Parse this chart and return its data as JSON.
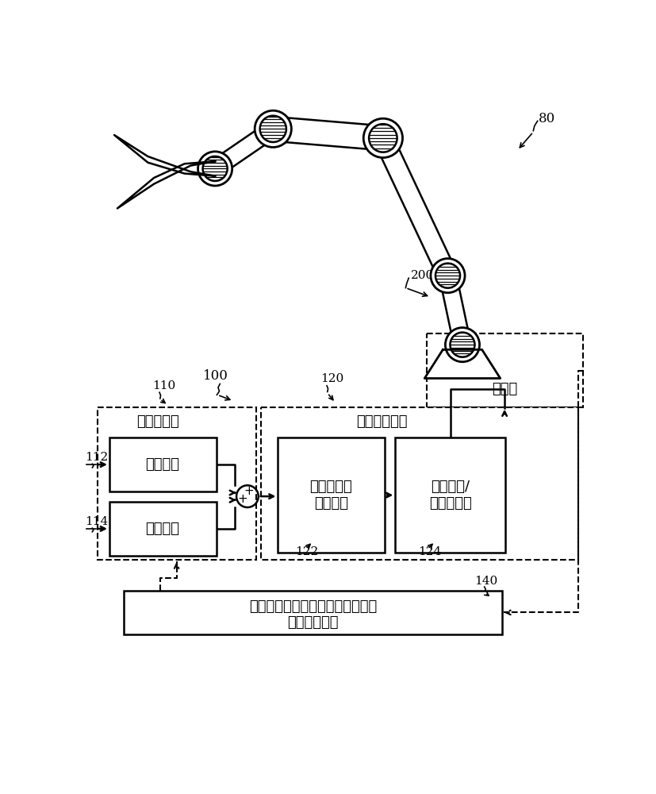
{
  "bg_color": "#ffffff",
  "label_80": "80",
  "label_200": "200",
  "label_100": "100",
  "label_110": "110",
  "label_120": "120",
  "label_112": "112",
  "label_114": "114",
  "label_122": "122",
  "label_124": "124",
  "label_140": "140",
  "text_robot": "机器人",
  "text_param_proc": "参数处理器",
  "text_adaptive": "自适应控制器",
  "text_pred_err": "预测误差",
  "text_track_err": "跟踪误差",
  "text_comp_learn": "复合学习参\n数更新律",
  "text_drive_torque": "驱动力矩/\n力矩控制器",
  "text_bottom_line1": "机器人关节状态、速度、驱动力矩",
  "text_bottom_line2": "（实测参数）",
  "lw": 1.8,
  "lw_dash": 1.5,
  "lw_thin": 1.2,
  "font_size_cn": 13,
  "font_size_lbl": 11
}
